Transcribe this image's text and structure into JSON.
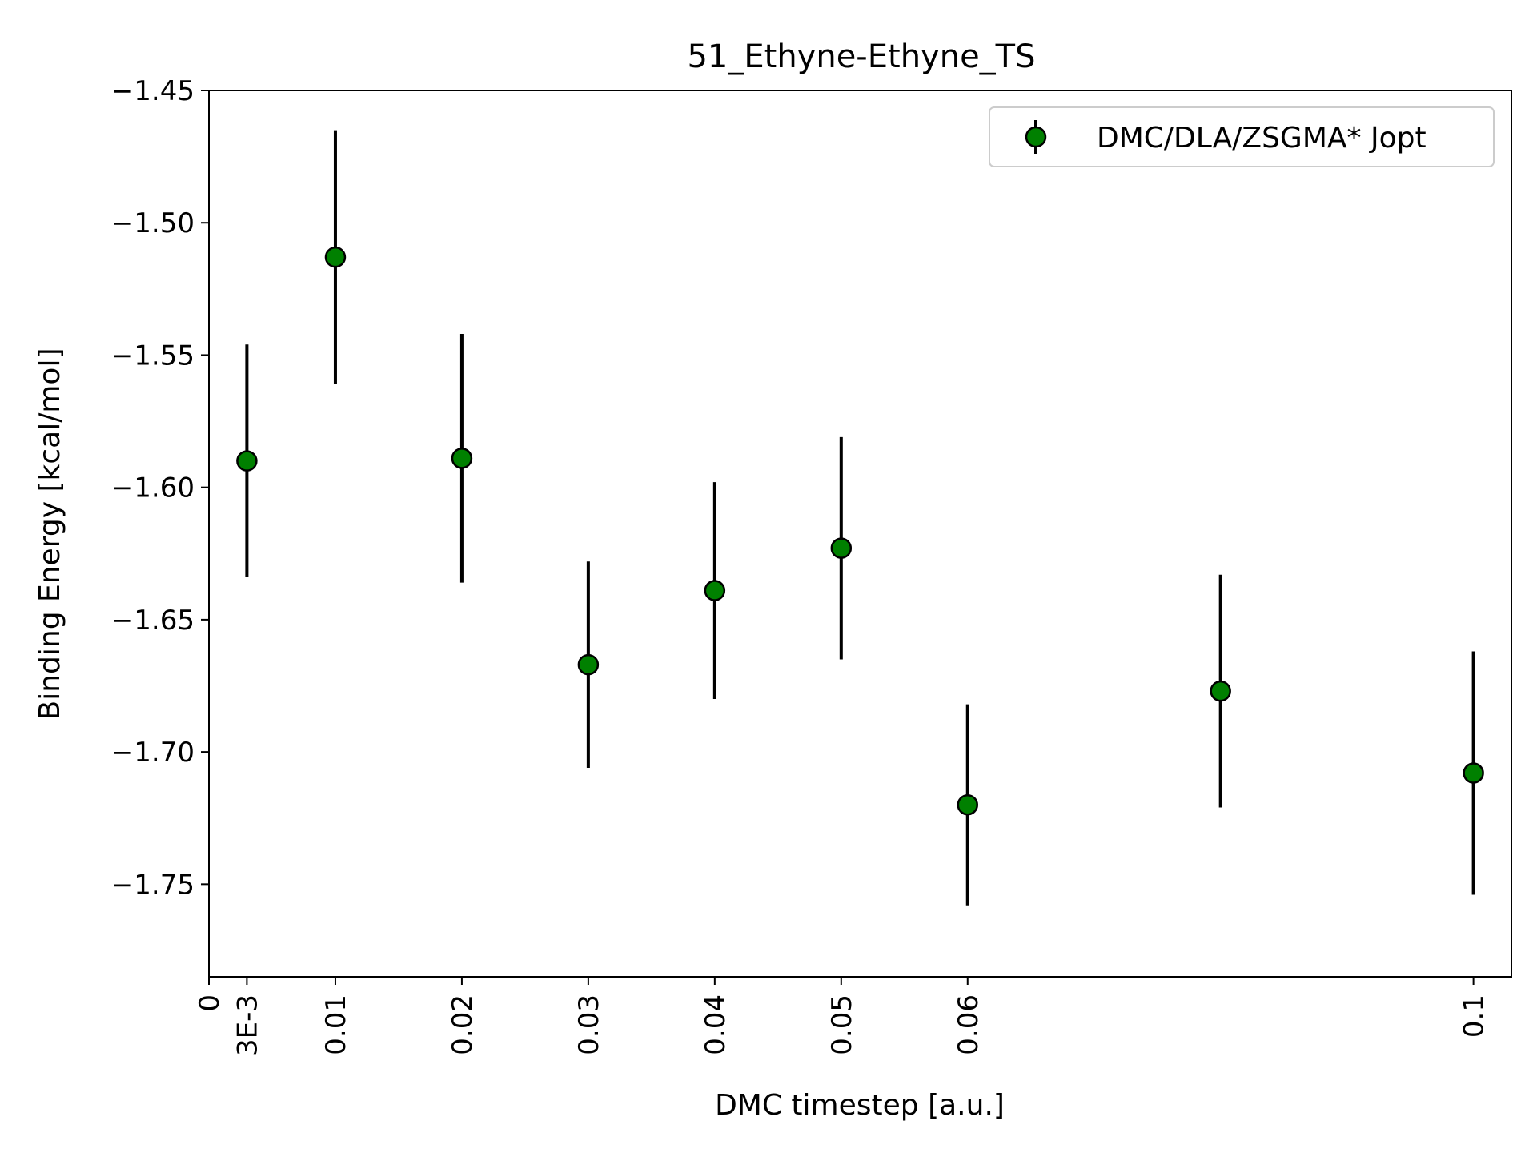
{
  "chart_data": {
    "type": "scatter",
    "title": "51_Ethyne-Ethyne_TS",
    "xlabel": "DMC timestep [a.u.]",
    "ylabel": "Binding Energy [kcal/mol]",
    "xlim": [
      0,
      0.103
    ],
    "ylim": [
      -1.785,
      -1.45
    ],
    "grid": false,
    "legend_position": "top-right",
    "x_ticks": [
      {
        "value": 0,
        "label": "0"
      },
      {
        "value": 0.003,
        "label": "3E-3"
      },
      {
        "value": 0.01,
        "label": "0.01"
      },
      {
        "value": 0.02,
        "label": "0.02"
      },
      {
        "value": 0.03,
        "label": "0.03"
      },
      {
        "value": 0.04,
        "label": "0.04"
      },
      {
        "value": 0.05,
        "label": "0.05"
      },
      {
        "value": 0.06,
        "label": "0.06"
      },
      {
        "value": 0.1,
        "label": "0.1"
      }
    ],
    "y_ticks": [
      {
        "value": -1.45,
        "label": "−1.45"
      },
      {
        "value": -1.5,
        "label": "−1.50"
      },
      {
        "value": -1.55,
        "label": "−1.55"
      },
      {
        "value": -1.6,
        "label": "−1.60"
      },
      {
        "value": -1.65,
        "label": "−1.65"
      },
      {
        "value": -1.7,
        "label": "−1.70"
      },
      {
        "value": -1.75,
        "label": "−1.75"
      }
    ],
    "series": [
      {
        "name": "DMC/DLA/ZSGMA* Jopt",
        "color": "#008000",
        "points": [
          {
            "x": 0.003,
            "y": -1.59,
            "err": 0.044
          },
          {
            "x": 0.01,
            "y": -1.513,
            "err": 0.048
          },
          {
            "x": 0.02,
            "y": -1.589,
            "err": 0.047
          },
          {
            "x": 0.03,
            "y": -1.667,
            "err": 0.039
          },
          {
            "x": 0.04,
            "y": -1.639,
            "err": 0.041
          },
          {
            "x": 0.05,
            "y": -1.623,
            "err": 0.042
          },
          {
            "x": 0.06,
            "y": -1.72,
            "err": 0.038
          },
          {
            "x": 0.08,
            "y": -1.677,
            "err": 0.044
          },
          {
            "x": 0.1,
            "y": -1.708,
            "err": 0.046
          }
        ]
      }
    ]
  }
}
